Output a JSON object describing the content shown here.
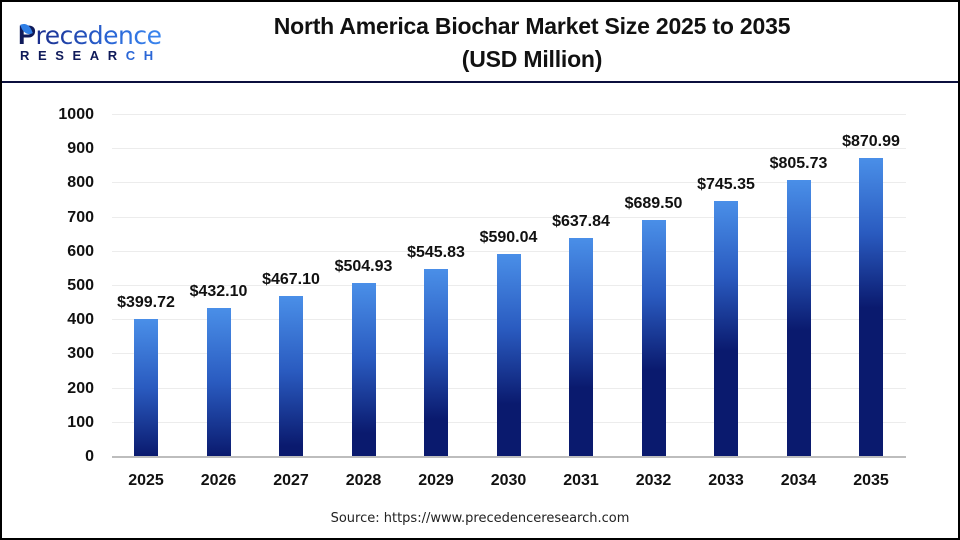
{
  "logo": {
    "first_letter": "P",
    "rest": "recedence",
    "bottom_main": "RESEAR",
    "bottom_highlight": "CH"
  },
  "title": {
    "line1": "North America Biochar Market Size 2025 to 2035",
    "line2": "(USD Million)"
  },
  "source": "Source: https://www.precedenceresearch.com",
  "colors": {
    "bar_top": "#4a8fe8",
    "bar_bottom": "#0a1a6e",
    "header_rule": "#0b0f3d",
    "border": "#000000"
  },
  "chart_data": {
    "type": "bar",
    "title": "North America Biochar Market Size 2025 to 2035 (USD Million)",
    "xlabel": "",
    "ylabel": "",
    "categories": [
      "2025",
      "2026",
      "2027",
      "2028",
      "2029",
      "2030",
      "2031",
      "2032",
      "2033",
      "2034",
      "2035"
    ],
    "values": [
      399.72,
      432.1,
      467.1,
      504.93,
      545.83,
      590.04,
      637.84,
      689.5,
      745.35,
      805.73,
      870.99
    ],
    "data_labels": [
      "$399.72",
      "$432.10",
      "$467.10",
      "$504.93",
      "$545.83",
      "$590.04",
      "$637.84",
      "$689.50",
      "$745.35",
      "$805.73",
      "$870.99"
    ],
    "ylim": [
      0,
      1000
    ],
    "yticks": [
      "0",
      "100",
      "200",
      "300",
      "400",
      "500",
      "600",
      "700",
      "800",
      "900",
      "1000"
    ],
    "grid": true,
    "legend": "none"
  }
}
